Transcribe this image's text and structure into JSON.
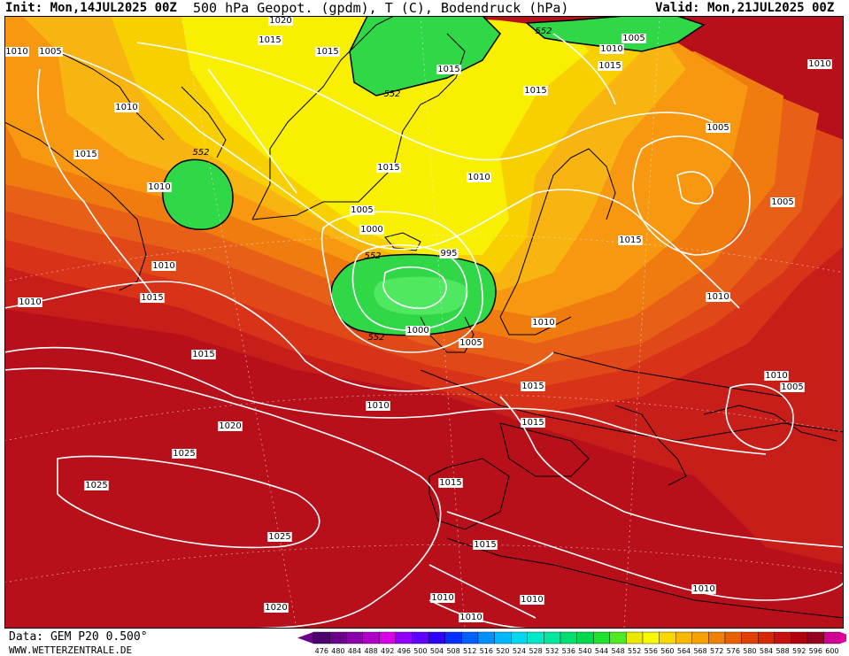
{
  "header": {
    "init": "Init: Mon,14JUL2025 00Z",
    "title": "500 hPa Geopot. (gpdm), T (C), Bodendruck (hPa)",
    "valid": "Valid: Mon,21JUL2025 00Z"
  },
  "footer": {
    "data_source": "Data: GEM P20 0.500°",
    "website": "WWW.WETTERZENTRALE.DE"
  },
  "colorbar": {
    "labels": [
      "476",
      "480",
      "484",
      "488",
      "492",
      "496",
      "500",
      "504",
      "508",
      "512",
      "516",
      "520",
      "524",
      "528",
      "532",
      "536",
      "540",
      "544",
      "548",
      "552",
      "556",
      "560",
      "564",
      "568",
      "572",
      "576",
      "580",
      "584",
      "588",
      "592",
      "596",
      "600"
    ],
    "colors": [
      "#4b006e",
      "#6a008a",
      "#8a00a8",
      "#b000c8",
      "#d800e8",
      "#9000ff",
      "#6000ff",
      "#3000ff",
      "#0030ff",
      "#0060ff",
      "#0090ff",
      "#00b8ff",
      "#00d8f0",
      "#00e8c8",
      "#00e8a0",
      "#00e070",
      "#00d850",
      "#20e030",
      "#50e820",
      "#e8e800",
      "#f8f800",
      "#f8d800",
      "#f8b800",
      "#f8a000",
      "#f08000",
      "#e86000",
      "#e04000",
      "#d82800",
      "#c81010",
      "#b00010",
      "#980020",
      "#d00090"
    ],
    "low_arrow_color": "#6a008a",
    "high_arrow_color": "#e000a0"
  },
  "map": {
    "geopotential_labels": [
      {
        "id": "g1",
        "text": "552"
      },
      {
        "id": "g2",
        "text": "552"
      },
      {
        "id": "g3",
        "text": "552"
      },
      {
        "id": "g4",
        "text": "552"
      },
      {
        "id": "g5",
        "text": "552"
      }
    ],
    "isobar_labels": [
      {
        "id": "p01",
        "text": "1020"
      },
      {
        "id": "p02",
        "text": "1015"
      },
      {
        "id": "p03",
        "text": "1010"
      },
      {
        "id": "p04",
        "text": "1005"
      },
      {
        "id": "p05",
        "text": "1015"
      },
      {
        "id": "p06",
        "text": "1015"
      },
      {
        "id": "p07",
        "text": "1010"
      },
      {
        "id": "p08",
        "text": "1015"
      },
      {
        "id": "p09",
        "text": "1010"
      },
      {
        "id": "p10",
        "text": "1005"
      },
      {
        "id": "p11",
        "text": "1005"
      },
      {
        "id": "p12",
        "text": "1010"
      },
      {
        "id": "p13",
        "text": "1015"
      },
      {
        "id": "p14",
        "text": "1010"
      },
      {
        "id": "p15",
        "text": "1005"
      },
      {
        "id": "p16",
        "text": "1000"
      },
      {
        "id": "p17",
        "text": "995"
      },
      {
        "id": "p18",
        "text": "1010"
      },
      {
        "id": "p19",
        "text": "1015"
      },
      {
        "id": "p20",
        "text": "1010"
      },
      {
        "id": "p21",
        "text": "1015"
      },
      {
        "id": "p22",
        "text": "1010"
      },
      {
        "id": "p23",
        "text": "1000"
      },
      {
        "id": "p24",
        "text": "1005"
      },
      {
        "id": "p25",
        "text": "1010"
      },
      {
        "id": "p26",
        "text": "1015"
      },
      {
        "id": "p27",
        "text": "1015"
      },
      {
        "id": "p28",
        "text": "1015"
      },
      {
        "id": "p29",
        "text": "1010"
      },
      {
        "id": "p30",
        "text": "1005"
      },
      {
        "id": "p31",
        "text": "1010"
      },
      {
        "id": "p32",
        "text": "1020"
      },
      {
        "id": "p33",
        "text": "1015"
      },
      {
        "id": "p34",
        "text": "1025"
      },
      {
        "id": "p35",
        "text": "1025"
      },
      {
        "id": "p36",
        "text": "1015"
      },
      {
        "id": "p37",
        "text": "1025"
      },
      {
        "id": "p38",
        "text": "1015"
      },
      {
        "id": "p39",
        "text": "1020"
      },
      {
        "id": "p40",
        "text": "1015"
      },
      {
        "id": "p41",
        "text": "1010"
      },
      {
        "id": "p42",
        "text": "1010"
      },
      {
        "id": "p43",
        "text": "1010"
      },
      {
        "id": "p44",
        "text": "1010"
      },
      {
        "id": "p45",
        "text": "1010"
      },
      {
        "id": "p46",
        "text": "1005"
      }
    ]
  }
}
